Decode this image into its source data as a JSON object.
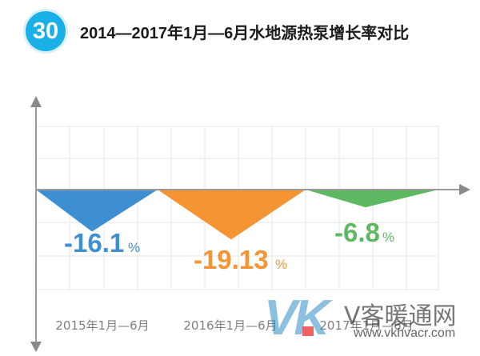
{
  "badge": "30",
  "title": "2014—2017年1月—6月水地源热泵增长率对比",
  "chart_data": {
    "type": "area",
    "title": "2014—2017年1月—6月水地源热泵增长率对比",
    "categories": [
      "2015年1月—6月",
      "2016年1月—6月",
      "2017年1月—6月"
    ],
    "values": [
      -16.1,
      -19.13,
      -6.8
    ],
    "value_labels": [
      "-16.1",
      "-19.13",
      "-6.8"
    ],
    "unit": "%",
    "colors": [
      "#3d8fd2",
      "#f59433",
      "#5db862"
    ],
    "grid": true,
    "ylim": [
      -30,
      25
    ]
  },
  "watermark": {
    "logo": "VK",
    "name": "V客暖通网",
    "url": "www.vkhvacr.com"
  }
}
